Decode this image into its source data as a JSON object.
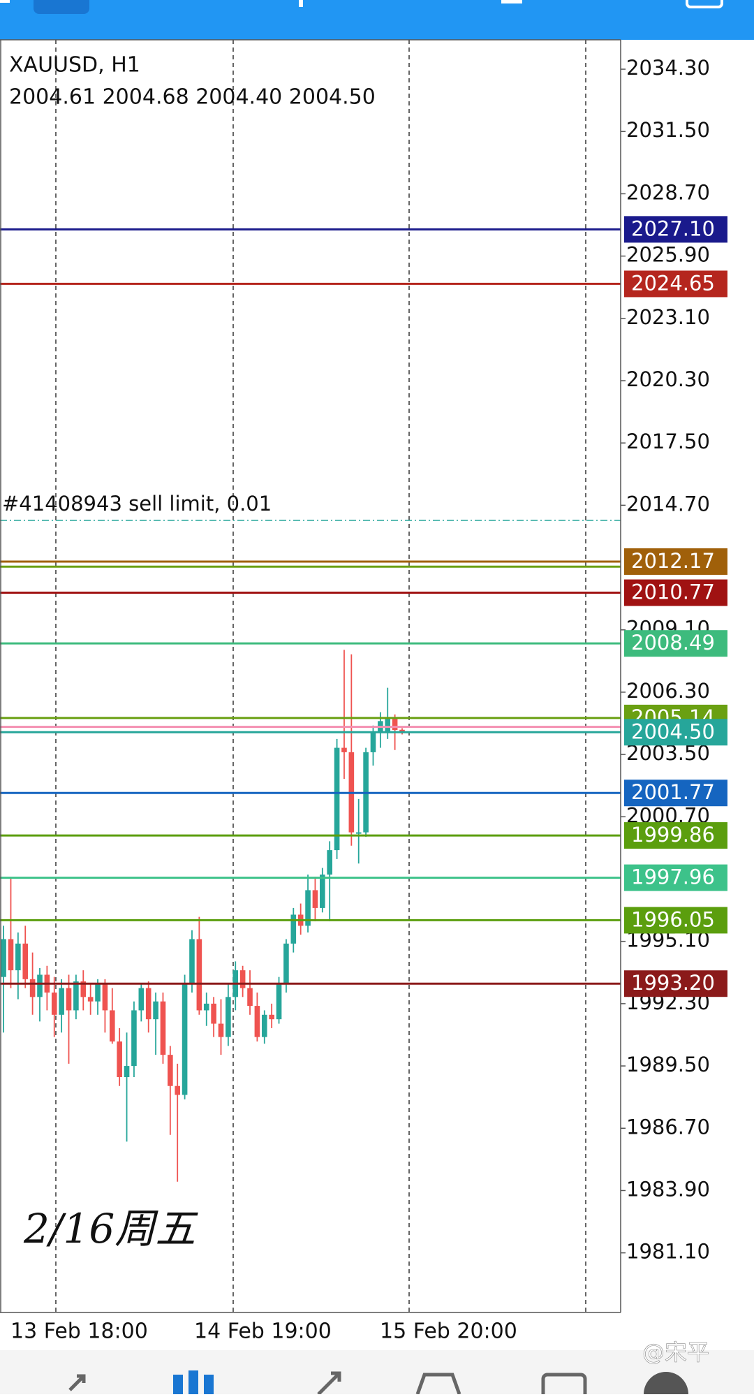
{
  "header": {
    "symbol": "XAUUSD, H1",
    "ohlc": "2004.61 2004.68 2004.40 2004.50"
  },
  "annotation": "2/16周五",
  "watermark": "@宋平",
  "chart_data": {
    "type": "candlestick",
    "up_color": "#26a69a",
    "down_color": "#ef5350",
    "ylim": [
      1978.42,
      2035.62
    ],
    "yticks": [
      {
        "value": 2034.3,
        "label": "2034.30"
      },
      {
        "value": 2031.5,
        "label": "2031.50"
      },
      {
        "value": 2028.7,
        "label": "2028.70"
      },
      {
        "value": 2025.9,
        "label": "2025.90"
      },
      {
        "value": 2023.1,
        "label": "2023.10"
      },
      {
        "value": 2020.3,
        "label": "2020.30"
      },
      {
        "value": 2017.5,
        "label": "2017.50"
      },
      {
        "value": 2014.7,
        "label": "2014.70"
      },
      {
        "value": 2009.1,
        "label": "2009.10"
      },
      {
        "value": 2006.3,
        "label": "2006.30"
      },
      {
        "value": 2003.5,
        "label": "2003.50"
      },
      {
        "value": 2000.7,
        "label": "2000.70"
      },
      {
        "value": 1995.1,
        "label": "1995.10"
      },
      {
        "value": 1992.3,
        "label": "1992.30"
      },
      {
        "value": 1989.5,
        "label": "1989.50"
      },
      {
        "value": 1986.7,
        "label": "1986.70"
      },
      {
        "value": 1983.9,
        "label": "1983.90"
      },
      {
        "value": 1981.1,
        "label": "1981.10"
      }
    ],
    "xlabels": [
      "13 Feb 18:00",
      "14 Feb 19:00",
      "15 Feb 20:00"
    ],
    "order": {
      "text": "#41408943 sell limit, 0.01",
      "value": 2014.02,
      "color": "#26a69a"
    },
    "levels": [
      {
        "value": 2027.1,
        "label": "2027.10",
        "color": "#1a1a8c"
      },
      {
        "value": 2024.65,
        "label": "2024.65",
        "color": "#b5261e"
      },
      {
        "value": 2012.17,
        "label": "2012.17",
        "color": "#a0600a"
      },
      {
        "value": 2011.94,
        "label": null,
        "color": "#6aa012"
      },
      {
        "value": 2010.77,
        "label": "2010.77",
        "color": "#a01212"
      },
      {
        "value": 2008.49,
        "label": "2008.49",
        "color": "#3dbb7d"
      },
      {
        "value": 2005.14,
        "label": "2005.14",
        "color": "#6aa012"
      },
      {
        "value": 2004.74,
        "label": null,
        "color": "#f48fb1"
      },
      {
        "value": 2004.5,
        "label": "2004.50",
        "color": "#26a69a"
      },
      {
        "value": 2001.77,
        "label": "2001.77",
        "color": "#1565c0"
      },
      {
        "value": 1999.86,
        "label": "1999.86",
        "color": "#5b9e0e"
      },
      {
        "value": 1997.96,
        "label": "1997.96",
        "color": "#3dc28a"
      },
      {
        "value": 1996.05,
        "label": "1996.05",
        "color": "#5b9e0e"
      },
      {
        "value": 1993.2,
        "label": "1993.20",
        "color": "#8b1a1a"
      }
    ],
    "open": [
      1993.5,
      1995.2,
      1993.8,
      1995.0,
      1993.4,
      1992.6,
      1993.6,
      1992.8,
      1991.8,
      1993.0,
      1992.0,
      1993.3,
      1992.6,
      1992.4,
      1993.2,
      1992.0,
      1990.6,
      1989.0,
      1989.5,
      1992.0,
      1993.0,
      1991.6,
      1992.4,
      1990.0,
      1988.6,
      1988.2,
      1993.2,
      1995.2,
      1992.0,
      1992.3,
      1991.4,
      1990.8,
      1992.6,
      1993.8,
      1993.0,
      1992.2,
      1990.8,
      1991.8,
      1991.6,
      1993.2,
      1995.0,
      1996.3,
      1995.8,
      1997.4,
      1996.6,
      1998.1,
      1999.2,
      2003.8,
      2003.6,
      2000.0,
      2000.0,
      2003.6,
      2004.5,
      2004.5,
      2005.1,
      2004.61
    ],
    "high": [
      1995.8,
      1998.0,
      1995.5,
      1995.8,
      1994.6,
      1993.9,
      1994.0,
      1993.5,
      1993.4,
      1993.6,
      1993.6,
      1993.8,
      1993.2,
      1993.4,
      1993.4,
      1993.0,
      1991.2,
      1991.0,
      1992.4,
      1993.2,
      1993.3,
      1992.8,
      1992.8,
      1990.4,
      1989.6,
      1993.6,
      1995.6,
      1996.2,
      1992.8,
      1992.6,
      1992.5,
      1993.2,
      1994.2,
      1994.0,
      1993.8,
      1992.8,
      1992.0,
      1992.3,
      1993.5,
      1995.2,
      1996.6,
      1996.8,
      1998.1,
      1998.0,
      1998.4,
      1999.6,
      2004.2,
      2008.2,
      2008.0,
      2001.5,
      2003.8,
      2004.8,
      2005.4,
      2006.5,
      2005.3,
      2004.68
    ],
    "low": [
      1991.0,
      1993.0,
      1992.5,
      1993.0,
      1991.8,
      1991.5,
      1992.0,
      1990.8,
      1991.0,
      1989.6,
      1991.6,
      1992.0,
      1991.8,
      1991.8,
      1991.0,
      1990.5,
      1988.6,
      1986.1,
      1989.0,
      1991.5,
      1991.0,
      1990.0,
      1989.6,
      1986.4,
      1984.3,
      1988.0,
      1992.8,
      1991.8,
      1991.3,
      1990.8,
      1990.0,
      1990.4,
      1992.0,
      1992.6,
      1991.8,
      1990.6,
      1990.5,
      1991.2,
      1991.4,
      1992.8,
      1994.6,
      1995.4,
      1995.5,
      1996.0,
      1996.4,
      1996.0,
      1998.8,
      2002.4,
      1999.4,
      1998.6,
      1999.8,
      2003.0,
      2003.8,
      2004.2,
      2003.7,
      2004.4
    ],
    "close": [
      1995.2,
      1993.8,
      1995.0,
      1993.4,
      1992.6,
      1993.6,
      1992.8,
      1991.8,
      1993.0,
      1992.0,
      1993.3,
      1992.6,
      1992.4,
      1993.2,
      1992.0,
      1990.6,
      1989.0,
      1989.5,
      1992.0,
      1993.0,
      1991.6,
      1992.4,
      1990.0,
      1988.6,
      1988.2,
      1993.2,
      1995.2,
      1992.0,
      1992.3,
      1991.4,
      1990.8,
      1992.6,
      1993.8,
      1993.0,
      1992.2,
      1990.8,
      1991.8,
      1991.6,
      1993.2,
      1995.0,
      1996.3,
      1995.8,
      1997.4,
      1996.6,
      1998.1,
      1999.2,
      2003.8,
      2003.6,
      2000.0,
      2000.0,
      2003.6,
      2004.5,
      2005.0,
      2005.1,
      2004.6,
      2004.5
    ]
  }
}
